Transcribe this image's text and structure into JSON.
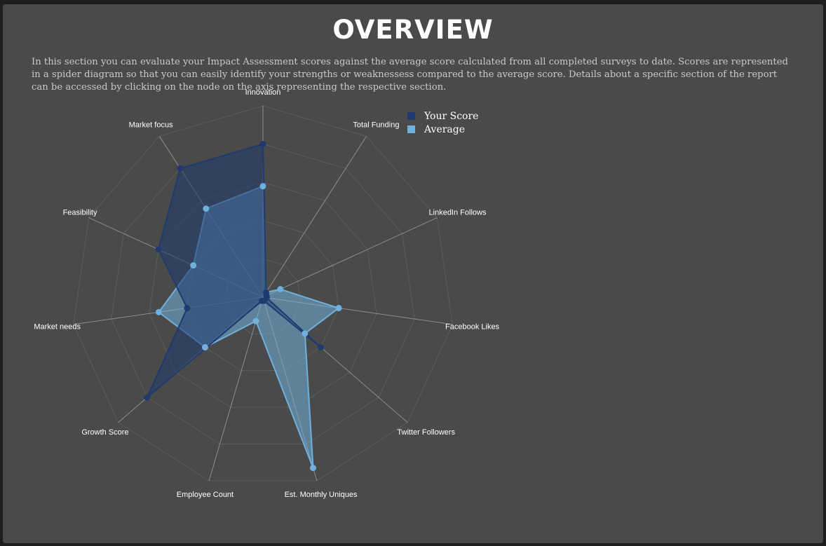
{
  "page": {
    "title": "OVERVIEW",
    "intro": "In this section you can evaluate your Impact Assessment scores against the average score calculated from all completed surveys to date. Scores are represented in a spider diagram so that you can easily identify your strengths or weaknessess compared to the average score. Details about a specific section of the report can be accessed by clicking on the node on the axis representing the respective section."
  },
  "chart_data": {
    "type": "radar",
    "axes": [
      "Innovation",
      "Total Funding",
      "LinkedIn Follows",
      "Facebook Likes",
      "Twitter Followers",
      "Est. Monthly Uniques",
      "Employee Count",
      "Growth Score",
      "Market needs",
      "Feasibility",
      "Market focus"
    ],
    "series": [
      {
        "name": "Your Score",
        "color": "#1f3a6e",
        "values": [
          0.8,
          0.03,
          0.02,
          0.02,
          0.4,
          0.02,
          0.02,
          0.8,
          0.4,
          0.6,
          0.8
        ]
      },
      {
        "name": "Average",
        "color": "#6fb0dc",
        "values": [
          0.58,
          0.03,
          0.1,
          0.4,
          0.29,
          0.93,
          0.13,
          0.4,
          0.55,
          0.4,
          0.55
        ]
      }
    ],
    "range": [
      0,
      1
    ],
    "grid_levels": 5,
    "legend_position": "top-right"
  }
}
